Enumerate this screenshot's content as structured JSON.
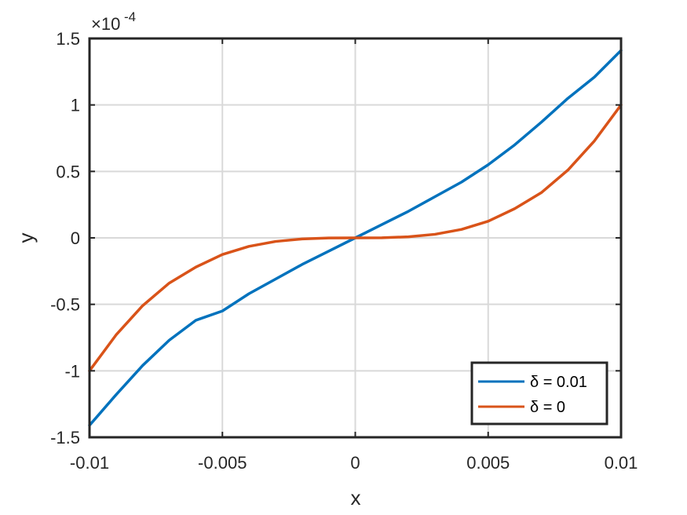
{
  "chart_data": {
    "type": "line",
    "xlabel": "x",
    "ylabel": "y",
    "xlim": [
      -0.01,
      0.01
    ],
    "ylim": [
      -1.5,
      1.5
    ],
    "y_exponent_label": "×10",
    "y_exponent_power": "-4",
    "y_scale_note": "y values shown in units of 1e-4",
    "grid": true,
    "legend_position": "bottom-right",
    "x_ticks": [
      -0.01,
      -0.005,
      0,
      0.005,
      0.01
    ],
    "x_tick_labels": [
      "-0.01",
      "-0.005",
      "0",
      "0.005",
      "0.01"
    ],
    "y_ticks": [
      -1.5,
      -1,
      -0.5,
      0,
      0.5,
      1,
      1.5
    ],
    "y_tick_labels": [
      "-1.5",
      "-1",
      "-0.5",
      "0",
      "0.5",
      "1",
      "1.5"
    ],
    "x": [
      -0.01,
      -0.009,
      -0.008,
      -0.007,
      -0.006,
      -0.005,
      -0.004,
      -0.003,
      -0.002,
      -0.001,
      0,
      0.001,
      0.002,
      0.003,
      0.004,
      0.005,
      0.006,
      0.007,
      0.008,
      0.009,
      0.01
    ],
    "series": [
      {
        "name": "δ = 0.01",
        "color": "#0072BD",
        "values": [
          -1.41,
          -1.18,
          -0.96,
          -0.77,
          -0.62,
          -0.55,
          -0.42,
          -0.31,
          -0.2,
          -0.1,
          0.0,
          0.1,
          0.2,
          0.31,
          0.42,
          0.55,
          0.7,
          0.87,
          1.05,
          1.21,
          1.41
        ]
      },
      {
        "name": "δ = 0",
        "color": "#D95319",
        "values": [
          -1.0,
          -0.73,
          -0.51,
          -0.34,
          -0.22,
          -0.125,
          -0.064,
          -0.027,
          -0.008,
          -0.001,
          0.0,
          0.001,
          0.008,
          0.027,
          0.064,
          0.125,
          0.22,
          0.34,
          0.51,
          0.73,
          1.0
        ]
      }
    ]
  }
}
